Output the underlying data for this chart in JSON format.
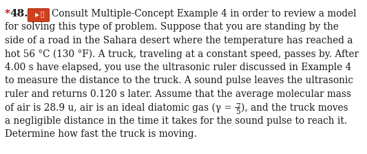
{
  "background_color": "#ffffff",
  "text_color": "#1a1a1a",
  "star_color": "#cc0000",
  "number_color": "#1a1a1a",
  "icon_bg_color": "#d04020",
  "icon_text_color": "#ffffff",
  "body_lines": [
    "Consult Multiple-Concept Example 4 in order to review a model",
    "for solving this type of problem. Suppose that you are standing by the",
    "side of a road in the Sahara desert where the temperature has reached a",
    "hot 56 °C (130 °F). A truck, traveling at a constant speed, passes by. After",
    "4.00 s have elapsed, you use the ultrasonic ruler discussed in Example 4",
    "to measure the distance to the truck. A sound pulse leaves the ultrasonic",
    "ruler and returns 0.120 s later. Assume that the average molecular mass",
    "of air is 28.9 u, air is an ideal diatomic gas (γ = ), and the truck moves",
    "a negligible distance in the time it takes for the sound pulse to reach it.",
    "Determine how fast the truck is moving."
  ],
  "gamma_line_index": 7,
  "gamma_line_part1": "of air is 28.9 u, air is an ideal diatomic gas (γ = ",
  "gamma_numerator": "7",
  "gamma_denominator": "5",
  "gamma_line_part2": "), and the truck moves",
  "font_size": 9.8,
  "bold_font_size": 10.5,
  "figsize": [
    5.33,
    2.24
  ],
  "dpi": 100
}
